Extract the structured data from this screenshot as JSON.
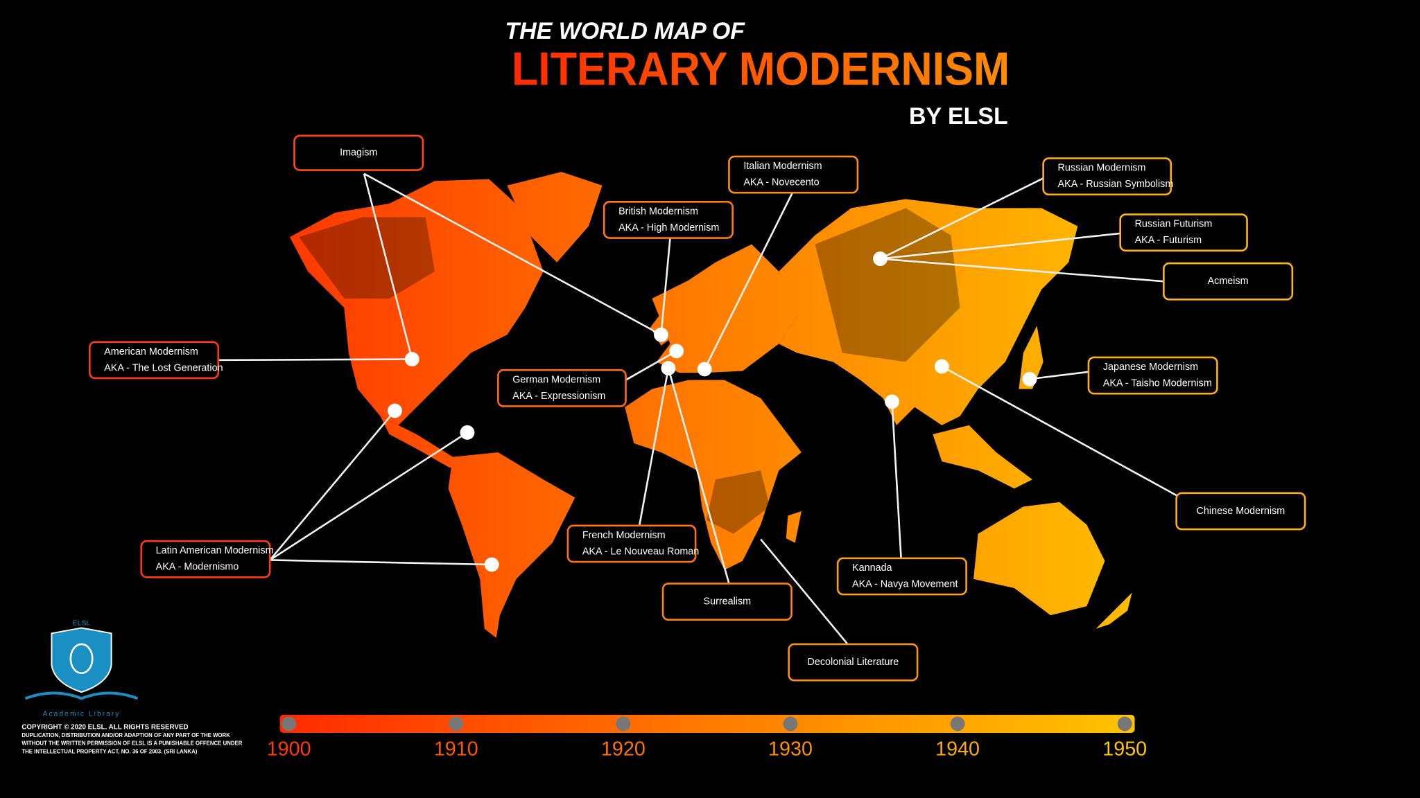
{
  "header": {
    "title_line1": "THE WORLD MAP OF",
    "title_line2": "LITERARY MODERNISM",
    "byline": "BY ELSL"
  },
  "labels": [
    {
      "lines": [
        "Imagism"
      ]
    },
    {
      "lines": [
        "Italian Modernism",
        "AKA - Novecento"
      ]
    },
    {
      "lines": [
        "British Modernism",
        "AKA - High Modernism"
      ]
    },
    {
      "lines": [
        "Russian Modernism",
        "AKA - Russian Symbolism"
      ]
    },
    {
      "lines": [
        "Russian Futurism",
        "AKA - Futurism"
      ]
    },
    {
      "lines": [
        "Acmeism"
      ]
    },
    {
      "lines": [
        "American Modernism",
        "AKA - The Lost Generation"
      ]
    },
    {
      "lines": [
        "German Modernism",
        "AKA - Expressionism"
      ]
    },
    {
      "lines": [
        "Japanese Modernism",
        "AKA - Taisho Modernism"
      ]
    },
    {
      "lines": [
        "Chinese Modernism"
      ]
    },
    {
      "lines": [
        "Latin American Modernism",
        "AKA - Modernismo"
      ]
    },
    {
      "lines": [
        "French Modernism",
        "AKA - Le Nouveau Roman"
      ]
    },
    {
      "lines": [
        "Kannada",
        "AKA - Navya Movement"
      ]
    },
    {
      "lines": [
        "Surrealism"
      ]
    },
    {
      "lines": [
        "Decolonial Literature"
      ]
    }
  ],
  "timeline": {
    "ticks": [
      "1900",
      "1910",
      "1920",
      "1930",
      "1940",
      "1950"
    ]
  },
  "logo": {
    "name": "ELSL",
    "subtitle": "Academic Library"
  },
  "copyright": [
    "COPYRIGHT © 2020 ELSL. ALL RIGHTS RESERVED",
    "DUPLICATION, DISTRIBUTION AND/OR ADAPTION OF ANY PART OF THE WORK",
    "WITHOUT THE WRITTEN PERMISSION OF ELSL IS A PUNISHABLE OFFENCE UNDER",
    "THE INTELLECTUAL PROPERTY ACT, NO. 36 OF 2003. (SRI LANKA)"
  ]
}
